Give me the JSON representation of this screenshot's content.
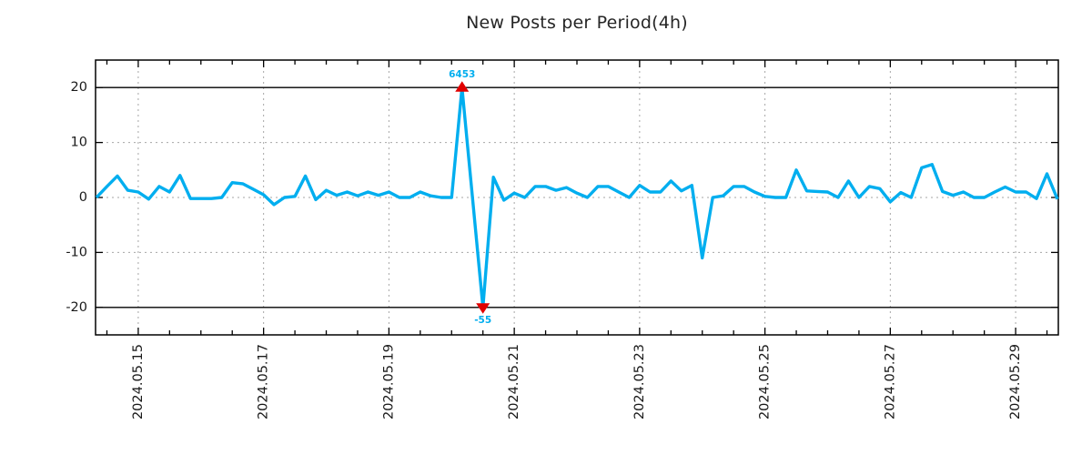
{
  "title": "New Posts per Period(4h)",
  "chart_data": {
    "type": "line",
    "title": "New Posts per Period(4h)",
    "period": "4h",
    "x_start": "2024.05.14 08:00",
    "x_step_hours": 4,
    "values": [
      0,
      2,
      3.9,
      1.3,
      1,
      -0.3,
      2,
      1,
      4,
      -0.2,
      -0.2,
      -0.2,
      0,
      2.7,
      2.5,
      1.5,
      0.5,
      -1.3,
      0,
      0.2,
      3.9,
      -0.4,
      1.3,
      0.4,
      1,
      0.3,
      1,
      0.4,
      1,
      0,
      0,
      1,
      0.3,
      0,
      0,
      6453,
      0,
      -55,
      3.7,
      -0.5,
      0.8,
      0,
      2,
      2,
      1.3,
      1.8,
      0.8,
      0,
      2,
      2,
      1,
      0,
      2.2,
      1,
      1,
      3,
      1.2,
      2.2,
      -11,
      0,
      0.3,
      2,
      2,
      1,
      0.2,
      0,
      0,
      5,
      1.2,
      1.1,
      1,
      0,
      3,
      0,
      2,
      1.6,
      -0.8,
      0.9,
      0,
      5.4,
      6,
      1.1,
      0.4,
      1,
      0,
      0,
      1,
      1.9,
      1,
      1,
      -0.2,
      4.3,
      -0.3
    ],
    "x_tick_labels": [
      "2024.05.15",
      "2024.05.17",
      "2024.05.19",
      "2024.05.21",
      "2024.05.23",
      "2024.05.25",
      "2024.05.27",
      "2024.05.29"
    ],
    "x_major_tick_indices": [
      4,
      16,
      28,
      40,
      52,
      64,
      76,
      88
    ],
    "x_minor_tick_start": 1,
    "x_minor_tick_step": 3,
    "y_ticks": [
      20,
      10,
      0,
      -10,
      -20
    ],
    "y_tick_labels": [
      "20",
      "10",
      "0",
      "-10",
      "-20"
    ],
    "ylim": [
      -25,
      25
    ],
    "clip_y": [
      -20,
      20
    ],
    "grid": true,
    "legend": "none",
    "annotations": [
      {
        "label": "6453",
        "value": 6453,
        "point_index": 35,
        "position": "above",
        "marker": "triangle-up"
      },
      {
        "label": "-55",
        "value": -55,
        "point_index": 37,
        "position": "below",
        "marker": "triangle-down"
      }
    ],
    "colors": {
      "line": "#00AEEF",
      "marker": "#E00000",
      "grid": "#A6A6A6",
      "axis": "#000000",
      "boundary_lines": "#000000",
      "tick_text": "#1A1A1A",
      "title_text": "#262626",
      "annotation_text": "#00AEEF"
    }
  }
}
